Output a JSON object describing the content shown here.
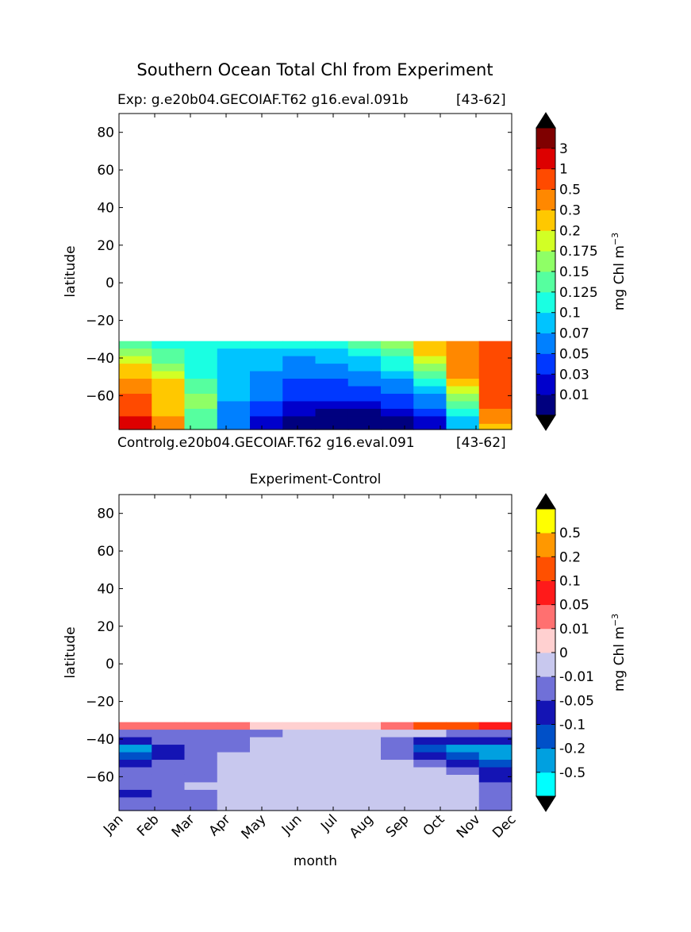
{
  "chart_data": [
    {
      "type": "heatmap",
      "suptitle": "Southern Ocean Total Chl from Experiment",
      "title_left": "Exp:    g.e20b04.GECOIAF.T62 g16.eval.091b",
      "title_right": "[43-62]",
      "xlabel": "",
      "ylabel": "latitude",
      "ylim": [
        -78,
        90
      ],
      "yticks": [
        80,
        60,
        40,
        20,
        0,
        -20,
        -40,
        -60
      ],
      "ytick_labels": [
        "80",
        "60",
        "40",
        "20",
        "0",
        "−20",
        "−40",
        "−60"
      ],
      "colorbar": {
        "label": "mg Chl m",
        "label_sup": "−3",
        "levels": [
          "0.01",
          "0.03",
          "0.05",
          "0.07",
          "0.1",
          "0.125",
          "0.15",
          "0.175",
          "0.2",
          "0.3",
          "0.5",
          "1",
          "3"
        ],
        "colors": [
          "#00007f",
          "#0000cc",
          "#0038ff",
          "#0080ff",
          "#00c4ff",
          "#1affe2",
          "#56ff9f",
          "#8fff66",
          "#d2ff25",
          "#ffc800",
          "#ff8800",
          "#ff4a00",
          "#dd0000",
          "#7f0000"
        ],
        "extend_under": "#000000",
        "extend_over": "#000000"
      },
      "months": [
        "Jan",
        "Feb",
        "Mar",
        "Apr",
        "May",
        "Jun",
        "Jul",
        "Aug",
        "Sep",
        "Oct",
        "Nov",
        "Dec"
      ],
      "latitudes": [
        -33,
        -37,
        -41,
        -45,
        -49,
        -53,
        -57,
        -61,
        -65,
        -69,
        -73,
        -77
      ],
      "z_level_index": [
        [
          6,
          5,
          5,
          5,
          5,
          5,
          5,
          6,
          7,
          9,
          10,
          11
        ],
        [
          7,
          6,
          5,
          4,
          4,
          4,
          4,
          5,
          6,
          9,
          10,
          11
        ],
        [
          8,
          6,
          5,
          4,
          4,
          3,
          4,
          4,
          5,
          8,
          10,
          11
        ],
        [
          9,
          7,
          5,
          4,
          4,
          3,
          3,
          4,
          5,
          7,
          10,
          11
        ],
        [
          9,
          8,
          5,
          4,
          3,
          3,
          3,
          3,
          4,
          6,
          10,
          11
        ],
        [
          10,
          9,
          6,
          4,
          3,
          2,
          2,
          3,
          3,
          5,
          9,
          11
        ],
        [
          10,
          9,
          6,
          4,
          3,
          2,
          2,
          2,
          3,
          4,
          8,
          11
        ],
        [
          11,
          9,
          7,
          4,
          3,
          2,
          2,
          2,
          2,
          3,
          7,
          11
        ],
        [
          11,
          9,
          7,
          3,
          2,
          1,
          1,
          1,
          2,
          3,
          6,
          11
        ],
        [
          11,
          9,
          6,
          3,
          2,
          1,
          0,
          0,
          1,
          2,
          5,
          10
        ],
        [
          12,
          10,
          6,
          3,
          1,
          0,
          0,
          0,
          0,
          1,
          4,
          10
        ],
        [
          12,
          10,
          6,
          3,
          1,
          0,
          0,
          0,
          0,
          1,
          4,
          9
        ]
      ]
    },
    {
      "type": "heatmap",
      "title": "Experiment-Control",
      "title_left": "Controlg.e20b04.GECOIAF.T62 g16.eval.091",
      "title_right": "[43-62]",
      "xlabel": "month",
      "ylabel": "latitude",
      "ylim": [
        -78,
        90
      ],
      "yticks": [
        80,
        60,
        40,
        20,
        0,
        -20,
        -40,
        -60
      ],
      "ytick_labels": [
        "80",
        "60",
        "40",
        "20",
        "0",
        "−20",
        "−40",
        "−60"
      ],
      "xtick_labels": [
        "Jan",
        "Feb",
        "Mar",
        "Apr",
        "May",
        "Jun",
        "Jul",
        "Aug",
        "Sep",
        "Oct",
        "Nov",
        "Dec"
      ],
      "colorbar": {
        "label": "mg Chl m",
        "label_sup": "−3",
        "levels": [
          "-0.5",
          "-0.2",
          "-0.1",
          "-0.05",
          "-0.01",
          "0",
          "0.01",
          "0.05",
          "0.1",
          "0.2",
          "0.5"
        ],
        "colors": [
          "#00ffff",
          "#00a0e0",
          "#0050c8",
          "#1414b4",
          "#7070d8",
          "#c8c8ee",
          "#ffd0d0",
          "#ff7070",
          "#ff1a1a",
          "#ff5000",
          "#ff9800",
          "#ffff00"
        ],
        "extend_under": "#000000",
        "extend_over": "#000000"
      },
      "months": [
        "Jan",
        "Feb",
        "Mar",
        "Apr",
        "May",
        "Jun",
        "Jul",
        "Aug",
        "Sep",
        "Oct",
        "Nov",
        "Dec"
      ],
      "latitudes": [
        -33,
        -37,
        -41,
        -45,
        -49,
        -53,
        -57,
        -61,
        -65,
        -69,
        -73,
        -77
      ],
      "z_level_index": [
        [
          7,
          7,
          7,
          7,
          6,
          6,
          6,
          6,
          7,
          9,
          9,
          8
        ],
        [
          4,
          4,
          4,
          4,
          4,
          5,
          5,
          5,
          5,
          5,
          4,
          4
        ],
        [
          3,
          4,
          4,
          4,
          5,
          5,
          5,
          5,
          4,
          3,
          3,
          3
        ],
        [
          1,
          3,
          4,
          4,
          5,
          5,
          5,
          5,
          4,
          2,
          1,
          1
        ],
        [
          2,
          3,
          4,
          5,
          5,
          5,
          5,
          5,
          4,
          3,
          2,
          1
        ],
        [
          3,
          4,
          4,
          5,
          5,
          5,
          5,
          5,
          5,
          4,
          3,
          2
        ],
        [
          4,
          4,
          4,
          5,
          5,
          5,
          5,
          5,
          5,
          5,
          4,
          3
        ],
        [
          4,
          4,
          4,
          5,
          5,
          5,
          5,
          5,
          5,
          5,
          5,
          3
        ],
        [
          4,
          4,
          5,
          5,
          5,
          5,
          5,
          5,
          5,
          5,
          5,
          4
        ],
        [
          3,
          4,
          4,
          5,
          5,
          5,
          5,
          5,
          5,
          5,
          5,
          4
        ],
        [
          4,
          4,
          4,
          5,
          5,
          5,
          5,
          5,
          5,
          5,
          5,
          4
        ],
        [
          4,
          4,
          4,
          5,
          5,
          5,
          5,
          5,
          5,
          5,
          5,
          4
        ]
      ]
    }
  ]
}
